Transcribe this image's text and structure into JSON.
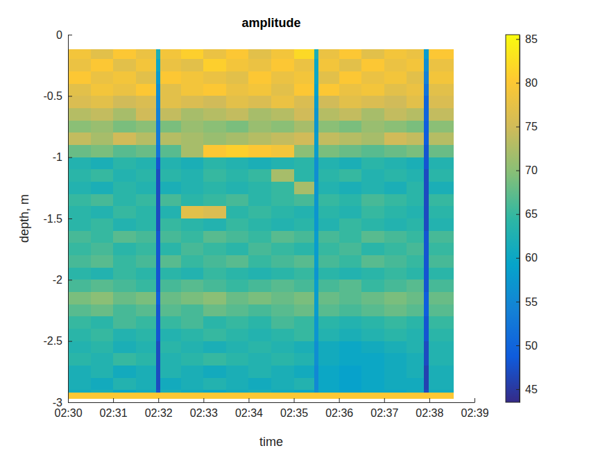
{
  "chart_data": {
    "type": "heatmap",
    "title": "amplitude",
    "x_label": "time",
    "y_label": "depth, m",
    "xlim": [
      150,
      159
    ],
    "xticks": [
      {
        "value": 150,
        "label": "02:30"
      },
      {
        "value": 151,
        "label": "02:31"
      },
      {
        "value": 152,
        "label": "02:32"
      },
      {
        "value": 153,
        "label": "02:33"
      },
      {
        "value": 154,
        "label": "02:34"
      },
      {
        "value": 155,
        "label": "02:35"
      },
      {
        "value": 156,
        "label": "02:36"
      },
      {
        "value": 157,
        "label": "02:37"
      },
      {
        "value": 158,
        "label": "02:38"
      },
      {
        "value": 159,
        "label": "02:39"
      }
    ],
    "ylim": [
      -3,
      0
    ],
    "yticks": [
      -3,
      -2.5,
      -2,
      -1.5,
      -1,
      -0.5,
      0
    ],
    "x_edges": [
      150,
      150.5,
      151,
      151.5,
      151.95,
      152.05,
      152.5,
      153,
      153.5,
      154,
      154.5,
      155,
      155.45,
      155.55,
      156,
      156.5,
      157,
      157.5,
      157.88,
      157.98,
      158.54
    ],
    "y_edges": [
      -0.12,
      -0.2,
      -0.3,
      -0.4,
      -0.5,
      -0.6,
      -0.7,
      -0.8,
      -0.9,
      -1.0,
      -1.1,
      -1.2,
      -1.3,
      -1.4,
      -1.5,
      -1.6,
      -1.7,
      -1.8,
      -1.9,
      -2.0,
      -2.1,
      -2.2,
      -2.3,
      -2.4,
      -2.5,
      -2.6,
      -2.7,
      -2.8,
      -2.9,
      -2.92,
      -2.97
    ],
    "cells": [
      [
        79,
        77,
        80,
        78,
        62,
        79,
        81,
        78,
        80,
        77,
        79,
        82,
        62,
        78,
        80,
        77,
        79,
        78,
        58,
        80
      ],
      [
        78,
        80,
        77,
        79,
        60,
        78,
        77,
        81,
        79,
        78,
        80,
        78,
        60,
        79,
        77,
        80,
        78,
        79,
        56,
        78
      ],
      [
        80,
        78,
        79,
        77,
        58,
        80,
        79,
        78,
        77,
        80,
        78,
        79,
        60,
        77,
        80,
        78,
        79,
        77,
        54,
        79
      ],
      [
        77,
        79,
        78,
        80,
        56,
        77,
        79,
        80,
        78,
        79,
        77,
        80,
        59,
        80,
        78,
        79,
        77,
        78,
        52,
        77
      ],
      [
        76,
        77,
        75,
        76,
        55,
        77,
        76,
        75,
        77,
        76,
        78,
        76,
        58,
        75,
        77,
        76,
        75,
        77,
        50,
        76
      ],
      [
        73,
        74,
        72,
        75,
        54,
        74,
        72,
        73,
        74,
        72,
        73,
        75,
        57,
        73,
        74,
        72,
        74,
        73,
        50,
        74
      ],
      [
        70,
        71,
        69,
        70,
        53,
        69,
        71,
        70,
        69,
        71,
        70,
        72,
        57,
        70,
        69,
        71,
        70,
        69,
        49,
        70
      ],
      [
        74,
        72,
        75,
        73,
        53,
        73,
        72,
        71,
        72,
        73,
        74,
        75,
        58,
        74,
        73,
        72,
        75,
        74,
        49,
        73
      ],
      [
        68,
        69,
        67,
        68,
        52,
        67,
        72,
        80,
        81,
        80,
        79,
        70,
        58,
        69,
        68,
        67,
        68,
        69,
        48,
        68
      ],
      [
        63,
        62,
        64,
        63,
        48,
        63,
        62,
        64,
        63,
        62,
        63,
        64,
        56,
        63,
        62,
        64,
        63,
        62,
        48,
        63
      ],
      [
        64,
        65,
        63,
        64,
        47,
        64,
        63,
        65,
        64,
        65,
        72,
        64,
        56,
        64,
        65,
        63,
        64,
        63,
        47,
        64
      ],
      [
        63,
        62,
        64,
        63,
        47,
        62,
        63,
        64,
        63,
        64,
        65,
        72,
        57,
        63,
        62,
        63,
        62,
        64,
        47,
        62
      ],
      [
        65,
        66,
        64,
        65,
        47,
        66,
        64,
        65,
        66,
        64,
        65,
        66,
        57,
        65,
        64,
        66,
        65,
        64,
        47,
        65
      ],
      [
        64,
        63,
        65,
        64,
        47,
        63,
        77,
        76,
        64,
        65,
        64,
        63,
        57,
        64,
        63,
        65,
        64,
        63,
        47,
        64
      ],
      [
        64,
        65,
        63,
        64,
        47,
        65,
        64,
        63,
        65,
        64,
        63,
        64,
        57,
        63,
        65,
        64,
        63,
        64,
        47,
        63
      ],
      [
        66,
        65,
        67,
        66,
        48,
        66,
        65,
        67,
        66,
        65,
        67,
        66,
        58,
        66,
        65,
        67,
        66,
        65,
        48,
        66
      ],
      [
        65,
        66,
        64,
        65,
        48,
        64,
        66,
        65,
        64,
        66,
        65,
        64,
        58,
        65,
        66,
        64,
        65,
        66,
        48,
        65
      ],
      [
        66,
        67,
        65,
        66,
        48,
        67,
        65,
        66,
        67,
        65,
        66,
        67,
        58,
        66,
        65,
        67,
        66,
        65,
        48,
        66
      ],
      [
        64,
        63,
        65,
        64,
        48,
        64,
        63,
        65,
        64,
        63,
        64,
        65,
        57,
        64,
        63,
        64,
        65,
        64,
        48,
        64
      ],
      [
        66,
        67,
        66,
        65,
        48,
        66,
        67,
        66,
        65,
        66,
        67,
        66,
        58,
        66,
        67,
        65,
        66,
        67,
        48,
        66
      ],
      [
        69,
        70,
        68,
        69,
        49,
        68,
        69,
        70,
        68,
        69,
        68,
        69,
        58,
        68,
        67,
        68,
        69,
        68,
        49,
        68
      ],
      [
        67,
        68,
        66,
        67,
        48,
        67,
        66,
        68,
        67,
        66,
        67,
        68,
        58,
        67,
        66,
        67,
        68,
        67,
        49,
        67
      ],
      [
        65,
        64,
        66,
        65,
        48,
        65,
        66,
        64,
        65,
        64,
        66,
        65,
        57,
        64,
        63,
        64,
        65,
        64,
        48,
        65
      ],
      [
        64,
        65,
        63,
        64,
        48,
        63,
        64,
        65,
        64,
        63,
        64,
        65,
        57,
        63,
        62,
        63,
        64,
        63,
        48,
        64
      ],
      [
        63,
        64,
        62,
        63,
        47,
        64,
        63,
        62,
        63,
        64,
        63,
        62,
        56,
        61,
        60,
        61,
        62,
        63,
        47,
        63
      ],
      [
        64,
        63,
        65,
        64,
        47,
        63,
        64,
        65,
        64,
        63,
        64,
        63,
        56,
        61,
        60,
        60,
        61,
        62,
        47,
        63
      ],
      [
        62,
        63,
        61,
        62,
        47,
        63,
        62,
        61,
        62,
        63,
        62,
        61,
        55,
        60,
        59,
        60,
        61,
        62,
        46,
        62
      ],
      [
        62,
        61,
        63,
        62,
        47,
        61,
        62,
        63,
        62,
        61,
        62,
        63,
        55,
        60,
        59,
        60,
        61,
        61,
        46,
        62
      ],
      [
        61,
        62,
        60,
        61,
        48,
        62,
        61,
        60,
        61,
        62,
        61,
        60,
        56,
        60,
        59,
        60,
        60,
        61,
        47,
        61
      ],
      [
        80,
        80,
        80,
        80,
        80,
        80,
        80,
        80,
        80,
        80,
        80,
        80,
        80,
        80,
        80,
        80,
        80,
        80,
        80,
        80
      ]
    ],
    "colorbar_lim": [
      43.5,
      85.5
    ],
    "colorbar_ticks": [
      45,
      50,
      55,
      60,
      65,
      70,
      75,
      80,
      85
    ]
  }
}
